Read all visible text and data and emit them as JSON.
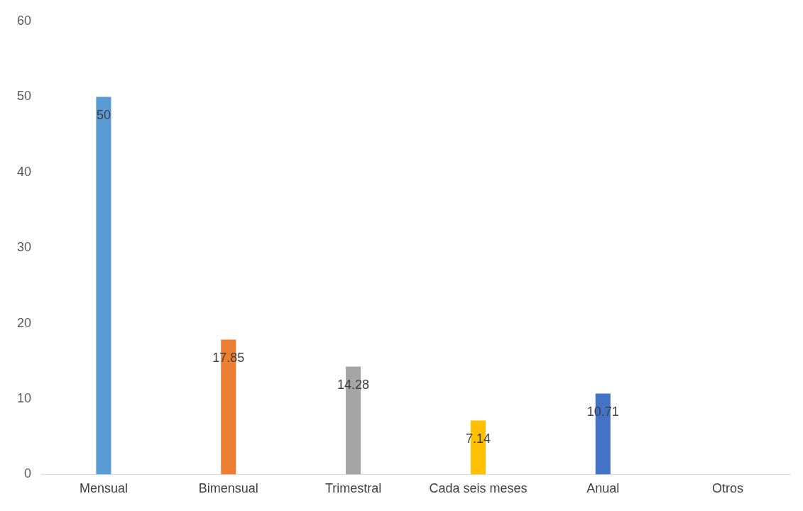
{
  "chart_data": {
    "type": "bar",
    "categories": [
      "Mensual",
      "Bimensual",
      "Trimestral",
      "Cada seis meses",
      "Anual",
      "Otros"
    ],
    "values": [
      50,
      17.85,
      14.28,
      7.14,
      10.71,
      0
    ],
    "colors": [
      "#5b9bd5",
      "#ed7d31",
      "#a5a5a5",
      "#ffc000",
      "#4472c4",
      "#70ad47"
    ],
    "value_labels": [
      "50",
      "17.85",
      "14.28",
      "7.14",
      "10.71",
      null
    ],
    "ylim": [
      0,
      60
    ],
    "yticks": [
      0,
      10,
      20,
      30,
      40,
      50,
      60
    ],
    "grid": false,
    "legend": false
  }
}
